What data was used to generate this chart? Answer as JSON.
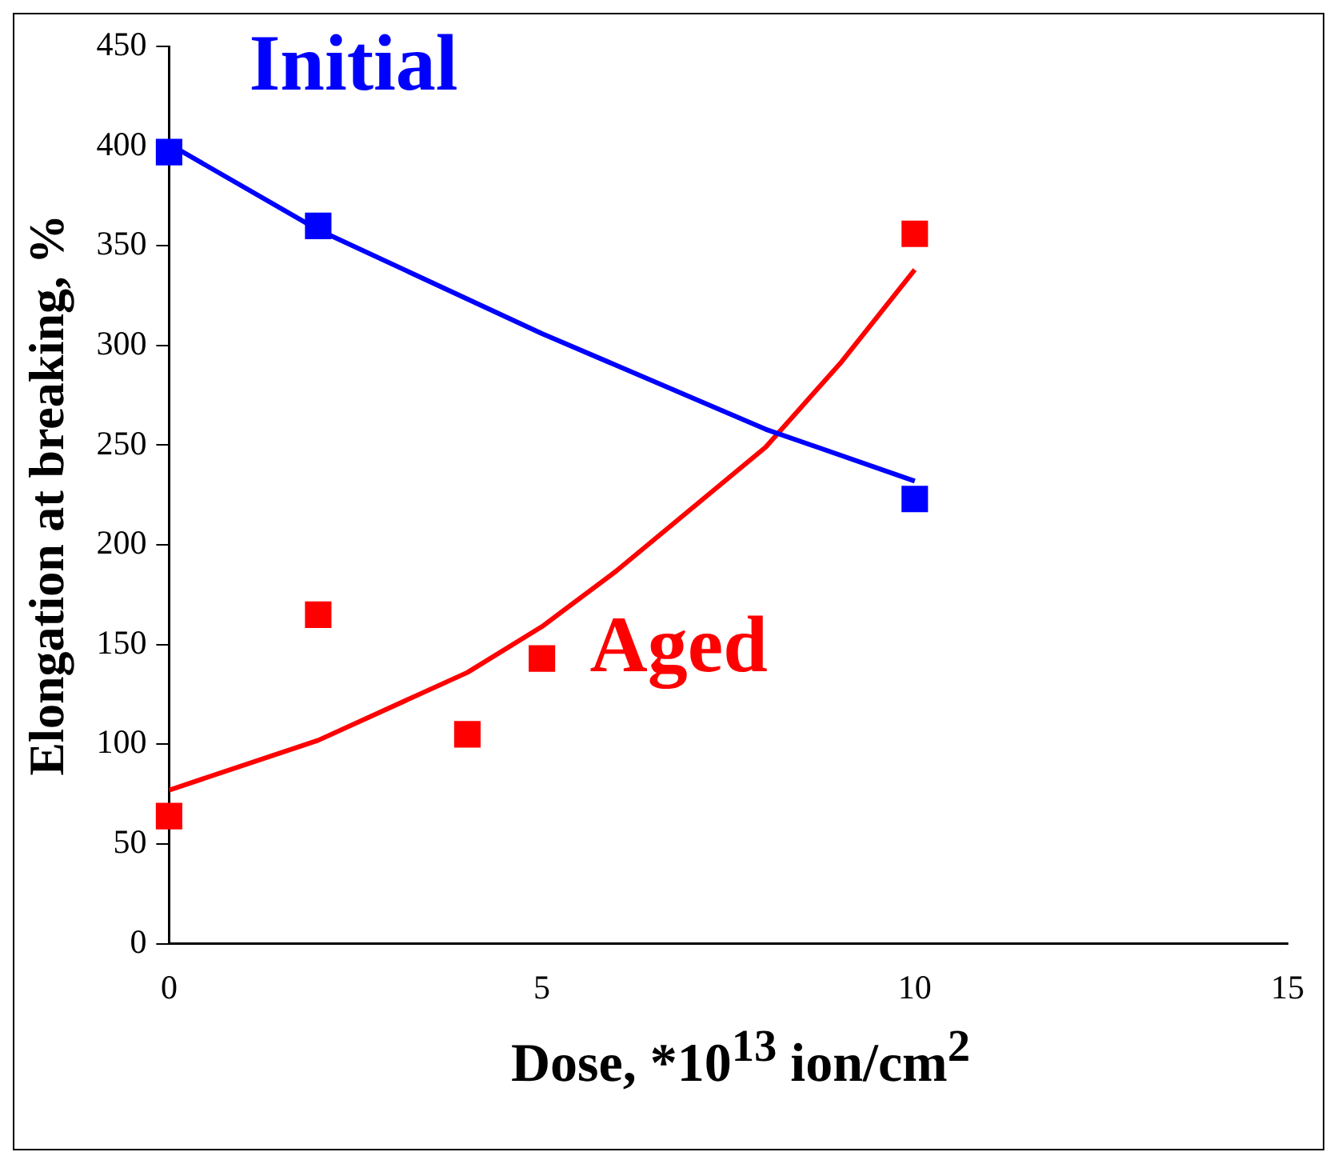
{
  "chart_data": {
    "type": "scatter",
    "xlabel": "Dose, *10$^{13}$ ion/cm$^{2}$",
    "ylabel": "Elongation at breaking, %",
    "series": [
      {
        "name": "Initial",
        "marker": "square",
        "color": "#0000ff",
        "x": [
          0,
          2,
          10
        ],
        "values": [
          397,
          360,
          223
        ]
      },
      {
        "name": "Aged",
        "marker": "square",
        "color": "#ff0000",
        "x": [
          0,
          2,
          4,
          5,
          10
        ],
        "values": [
          64,
          165,
          105,
          143,
          356
        ]
      },
      {
        "type": "line",
        "marker": "none",
        "color": "#0000ff",
        "x": [
          0,
          2,
          5,
          8,
          10
        ],
        "values": [
          401,
          358,
          306,
          258,
          232
        ]
      },
      {
        "type": "line",
        "marker": "none",
        "color": "#ff0000",
        "x": [
          0,
          2,
          4,
          5,
          6,
          8,
          9,
          10
        ],
        "values": [
          77,
          102,
          136,
          159,
          187,
          249,
          291,
          338
        ]
      }
    ],
    "xlim": [
      0,
      15
    ],
    "xticks": [
      0,
      5,
      10,
      15
    ],
    "ylim": [
      0,
      450
    ],
    "yticks": [
      0,
      50,
      100,
      150,
      200,
      250,
      300,
      350,
      400,
      450
    ],
    "line_style": "solid",
    "grid": false,
    "legend": false
  }
}
